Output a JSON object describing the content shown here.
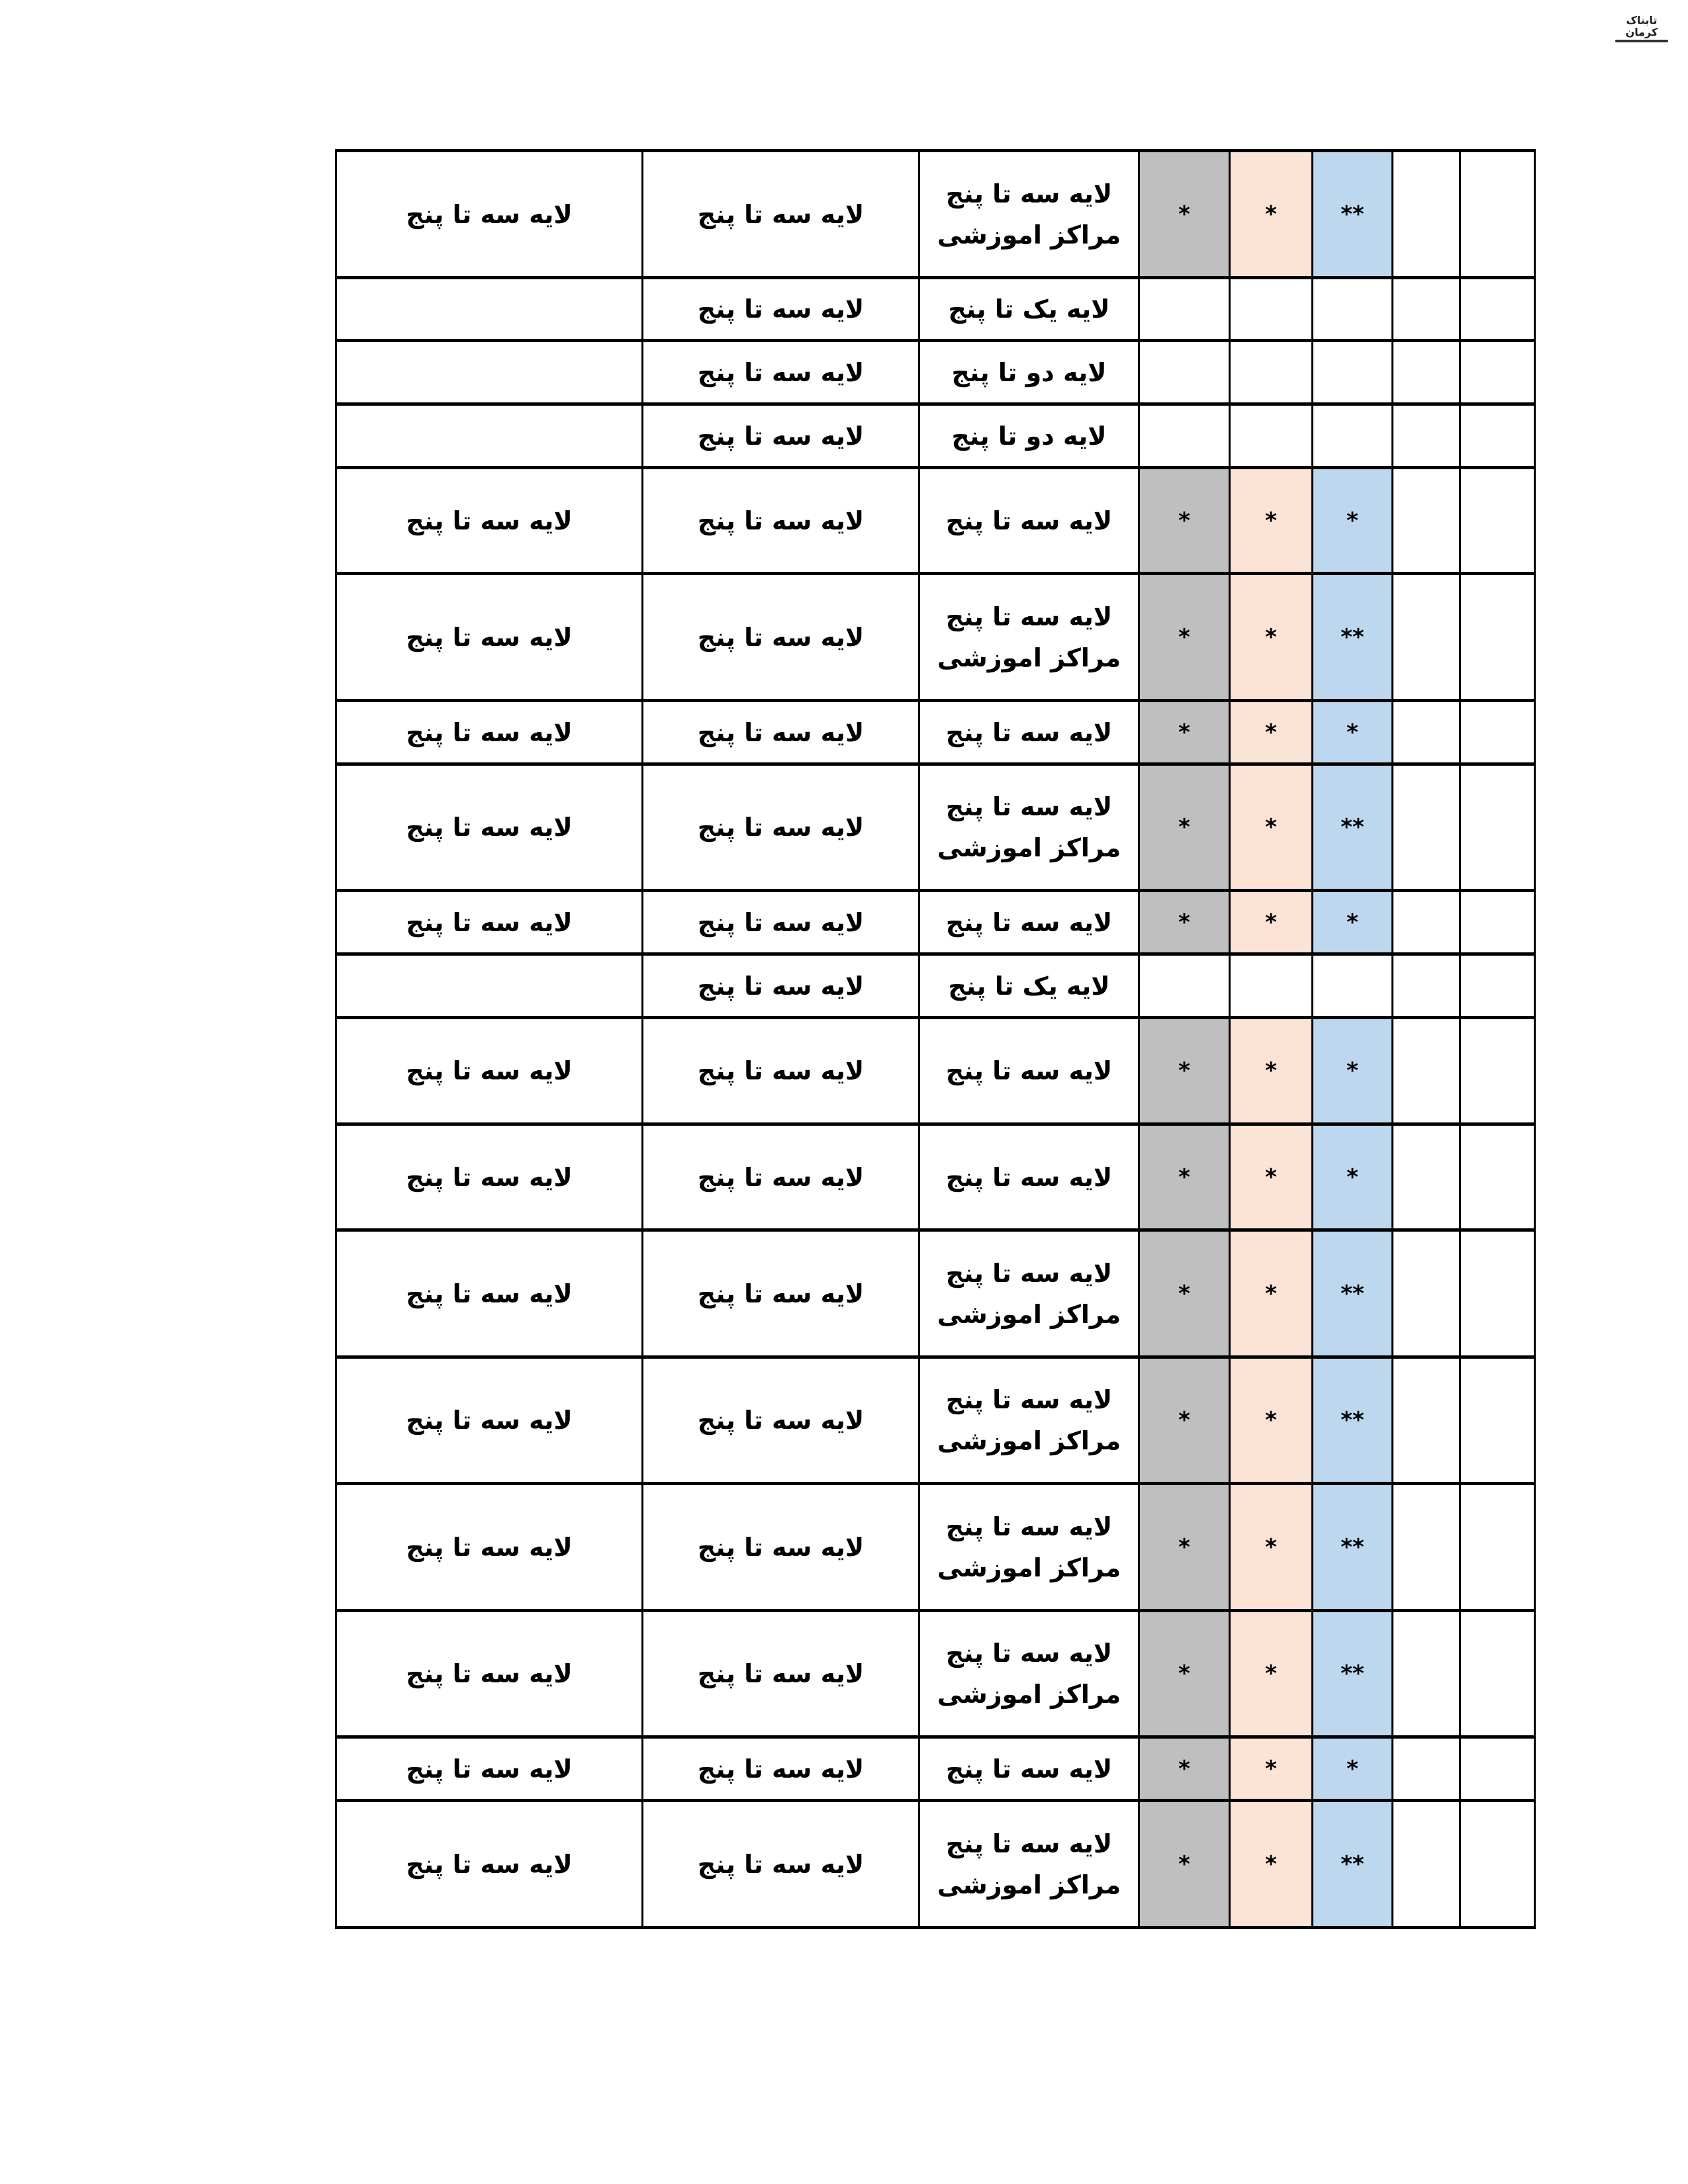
{
  "logo": {
    "text": "تابناک کرمان"
  },
  "colors": {
    "gray": "#bfbfbf",
    "peach": "#fbe3d6",
    "blue": "#bdd7ee"
  },
  "rows": [
    {
      "c1": "لایه سه تا پنج",
      "c2": "لایه سه تا پنج",
      "c3": [
        "لایه سه تا پنج",
        "مراکز اموزشی"
      ],
      "marks": [
        "*",
        "*",
        "**"
      ]
    },
    {
      "c1": "",
      "c2": "لایه سه تا پنج",
      "c3": [
        "لایه یک تا پنج"
      ],
      "marks": [
        "",
        "",
        ""
      ]
    },
    {
      "c1": "",
      "c2": "لایه سه تا پنج",
      "c3": [
        "لایه دو تا پنج"
      ],
      "marks": [
        "",
        "",
        ""
      ]
    },
    {
      "c1": "",
      "c2": "لایه سه تا پنج",
      "c3": [
        "لایه دو تا پنج"
      ],
      "marks": [
        "",
        "",
        ""
      ]
    },
    {
      "c1": "لایه سه تا پنج",
      "c2": "لایه سه تا پنج",
      "c3": [
        "لایه سه تا پنج"
      ],
      "marks": [
        "*",
        "*",
        "*"
      ]
    },
    {
      "c1": "لایه سه تا پنج",
      "c2": "لایه سه تا پنج",
      "c3": [
        "لایه سه تا پنج",
        "مراکز اموزشی"
      ],
      "marks": [
        "*",
        "*",
        "**"
      ]
    },
    {
      "c1": "لایه سه تا پنج",
      "c2": "لایه سه تا پنج",
      "c3": [
        "لایه سه تا پنج"
      ],
      "marks": [
        "*",
        "*",
        "*"
      ]
    },
    {
      "c1": "لایه سه تا پنج",
      "c2": "لایه سه تا پنج",
      "c3": [
        "لایه سه تا پنج",
        "مراکز اموزشی"
      ],
      "marks": [
        "*",
        "*",
        "**"
      ]
    },
    {
      "c1": "لایه سه تا پنج",
      "c2": "لایه سه تا پنج",
      "c3": [
        "لایه سه تا پنج"
      ],
      "marks": [
        "*",
        "*",
        "*"
      ]
    },
    {
      "c1": "",
      "c2": "لایه سه تا پنج",
      "c3": [
        "لایه یک تا پنج"
      ],
      "marks": [
        "",
        "",
        ""
      ]
    },
    {
      "c1": "لایه سه تا پنج",
      "c2": "لایه سه تا پنج",
      "c3": [
        "لایه سه تا پنج"
      ],
      "marks": [
        "*",
        "*",
        "*"
      ]
    },
    {
      "c1": "لایه سه تا پنج",
      "c2": "لایه سه تا پنج",
      "c3": [
        "لایه سه تا پنج"
      ],
      "marks": [
        "*",
        "*",
        "*"
      ]
    },
    {
      "c1": "لایه سه تا پنج",
      "c2": "لایه سه تا پنج",
      "c3": [
        "لایه سه تا پنج",
        "مراکز اموزشی"
      ],
      "marks": [
        "*",
        "*",
        "**"
      ]
    },
    {
      "c1": "لایه سه تا پنج",
      "c2": "لایه سه تا پنج",
      "c3": [
        "لایه سه تا پنج",
        "مراکز اموزشی"
      ],
      "marks": [
        "*",
        "*",
        "**"
      ]
    },
    {
      "c1": "لایه سه تا پنج",
      "c2": "لایه سه تا پنج",
      "c3": [
        "لایه سه تا پنج",
        "مراکز اموزشی"
      ],
      "marks": [
        "*",
        "*",
        "**"
      ]
    },
    {
      "c1": "لایه سه تا پنج",
      "c2": "لایه سه تا پنج",
      "c3": [
        "لایه سه تا پنج",
        "مراکز اموزشی"
      ],
      "marks": [
        "*",
        "*",
        "**"
      ]
    },
    {
      "c1": "لایه سه تا پنج",
      "c2": "لایه سه تا پنج",
      "c3": [
        "لایه سه تا پنج"
      ],
      "marks": [
        "*",
        "*",
        "*"
      ]
    },
    {
      "c1": "لایه سه تا پنج",
      "c2": "لایه سه تا پنج",
      "c3": [
        "لایه سه تا پنج",
        "مراکز اموزشی"
      ],
      "marks": [
        "*",
        "*",
        "**"
      ]
    }
  ]
}
